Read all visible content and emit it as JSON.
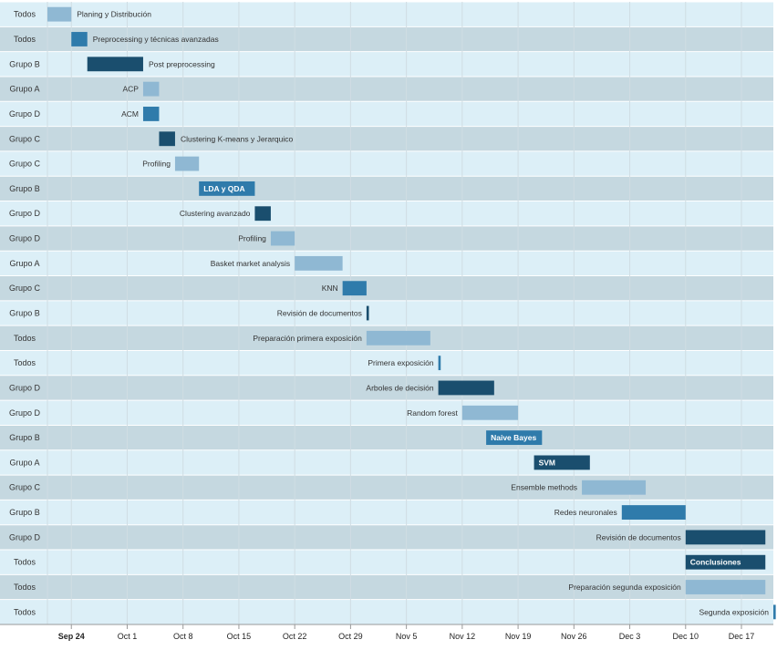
{
  "colors": {
    "row_even": "#dceff7",
    "row_odd": "#c5d8e0",
    "grid": "#d0dde3",
    "bar_light": "#8fb8d3",
    "bar_mid": "#2f7bab",
    "bar_dark": "#1a4e6e",
    "axis": "#999999"
  },
  "chart_data": {
    "type": "gantt",
    "x_axis": {
      "ticks": [
        {
          "date": "2018-09-24",
          "label": "Sep 24",
          "bold": true
        },
        {
          "date": "2018-10-01",
          "label": "Oct 1",
          "bold": false
        },
        {
          "date": "2018-10-08",
          "label": "Oct 8",
          "bold": false
        },
        {
          "date": "2018-10-15",
          "label": "Oct 15",
          "bold": false
        },
        {
          "date": "2018-10-22",
          "label": "Oct 22",
          "bold": false
        },
        {
          "date": "2018-10-29",
          "label": "Oct 29",
          "bold": false
        },
        {
          "date": "2018-11-05",
          "label": "Nov 5",
          "bold": false
        },
        {
          "date": "2018-11-12",
          "label": "Nov 12",
          "bold": false
        },
        {
          "date": "2018-11-19",
          "label": "Nov 19",
          "bold": false
        },
        {
          "date": "2018-11-26",
          "label": "Nov 26",
          "bold": false
        },
        {
          "date": "2018-12-03",
          "label": "Dec 3",
          "bold": false
        },
        {
          "date": "2018-12-10",
          "label": "Dec 10",
          "bold": false
        },
        {
          "date": "2018-12-17",
          "label": "Dec 17",
          "bold": false
        }
      ],
      "range": [
        "2018-09-21",
        "2018-12-21"
      ],
      "grid": true
    },
    "tasks": [
      {
        "group": "Todos",
        "task": "Planing y Distribución",
        "start": "2018-09-21",
        "end": "2018-09-24",
        "color": "light",
        "label_inside": false
      },
      {
        "group": "Todos",
        "task": "Preprocessing y técnicas avanzadas",
        "start": "2018-09-24",
        "end": "2018-09-26",
        "color": "mid",
        "label_inside": false
      },
      {
        "group": "Grupo B",
        "task": "Post preprocessing",
        "start": "2018-09-26",
        "end": "2018-10-03",
        "color": "dark",
        "label_inside": false
      },
      {
        "group": "Grupo A",
        "task": "ACP",
        "start": "2018-10-03",
        "end": "2018-10-05",
        "color": "light",
        "label_inside": false
      },
      {
        "group": "Grupo D",
        "task": "ACM",
        "start": "2018-10-03",
        "end": "2018-10-05",
        "color": "mid",
        "label_inside": false
      },
      {
        "group": "Grupo C",
        "task": "Clustering K-means y Jerarquico",
        "start": "2018-10-05",
        "end": "2018-10-07",
        "color": "dark",
        "label_inside": false
      },
      {
        "group": "Grupo C",
        "task": "Profiling",
        "start": "2018-10-07",
        "end": "2018-10-10",
        "color": "light",
        "label_inside": false
      },
      {
        "group": "Grupo B",
        "task": "LDA y QDA",
        "start": "2018-10-10",
        "end": "2018-10-17",
        "color": "mid",
        "label_inside": true
      },
      {
        "group": "Grupo D",
        "task": "Clustering avanzado",
        "start": "2018-10-17",
        "end": "2018-10-19",
        "color": "dark",
        "label_inside": false
      },
      {
        "group": "Grupo D",
        "task": "Profiling",
        "start": "2018-10-19",
        "end": "2018-10-22",
        "color": "light",
        "label_inside": false
      },
      {
        "group": "Grupo A",
        "task": "Basket market analysis",
        "start": "2018-10-22",
        "end": "2018-10-28",
        "color": "light",
        "label_inside": false
      },
      {
        "group": "Grupo C",
        "task": "KNN",
        "start": "2018-10-28",
        "end": "2018-10-31",
        "color": "mid",
        "label_inside": false
      },
      {
        "group": "Grupo B",
        "task": "Revisión de documentos",
        "start": "2018-10-31",
        "end": "2018-10-31.3",
        "color": "dark",
        "label_inside": false
      },
      {
        "group": "Todos",
        "task": "Preparación primera exposición",
        "start": "2018-10-31",
        "end": "2018-11-08",
        "color": "light",
        "label_inside": false
      },
      {
        "group": "Todos",
        "task": "Primera exposición",
        "start": "2018-11-09",
        "end": "2018-11-09.3",
        "color": "mid",
        "label_inside": false
      },
      {
        "group": "Grupo D",
        "task": "Arboles de decisión",
        "start": "2018-11-09",
        "end": "2018-11-16",
        "color": "dark",
        "label_inside": false
      },
      {
        "group": "Grupo D",
        "task": "Random forest",
        "start": "2018-11-12",
        "end": "2018-11-19",
        "color": "light",
        "label_inside": false
      },
      {
        "group": "Grupo B",
        "task": "Naive Bayes",
        "start": "2018-11-15",
        "end": "2018-11-22",
        "color": "mid",
        "label_inside": true
      },
      {
        "group": "Grupo A",
        "task": "SVM",
        "start": "2018-11-21",
        "end": "2018-11-28",
        "color": "dark",
        "label_inside": true
      },
      {
        "group": "Grupo C",
        "task": "Ensemble methods",
        "start": "2018-11-27",
        "end": "2018-12-05",
        "color": "light",
        "label_inside": false
      },
      {
        "group": "Grupo B",
        "task": "Redes neuronales",
        "start": "2018-12-02",
        "end": "2018-12-10",
        "color": "mid",
        "label_inside": false
      },
      {
        "group": "Grupo D",
        "task": "Revisión de documentos",
        "start": "2018-12-10",
        "end": "2018-12-20",
        "color": "dark",
        "label_inside": false
      },
      {
        "group": "Todos",
        "task": "Conclusiones",
        "start": "2018-12-10",
        "end": "2018-12-20",
        "color": "dark",
        "label_inside": true
      },
      {
        "group": "Todos",
        "task": "Preparación segunda exposición",
        "start": "2018-12-10",
        "end": "2018-12-20",
        "color": "light",
        "label_inside": false
      },
      {
        "group": "Todos",
        "task": "Segunda exposición",
        "start": "2018-12-21",
        "end": "2018-12-21.3",
        "color": "mid",
        "label_inside": false
      }
    ]
  }
}
